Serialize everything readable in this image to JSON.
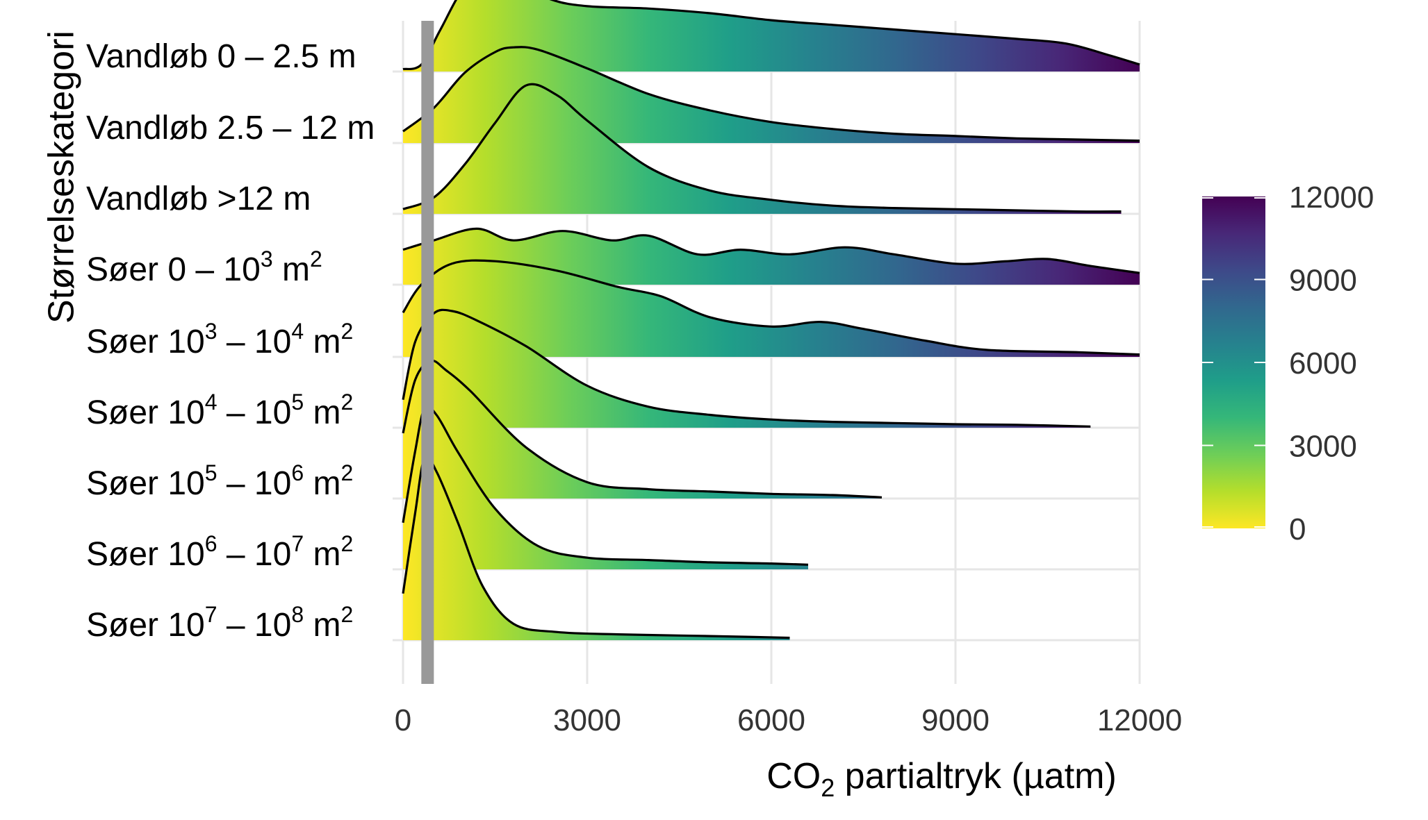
{
  "chart_data": {
    "type": "ridgeline",
    "ylabel": "Størrelseskategori",
    "xlabel": {
      "prefix": "CO",
      "subscript": "2",
      "suffix": " partialtryk (µatm)"
    },
    "xlim": [
      0,
      12000
    ],
    "x_ticks": [
      "0",
      "3000",
      "6000",
      "9000",
      "12000"
    ],
    "reference_line_x": 400,
    "colorbar": {
      "ticks": [
        "0",
        "3000",
        "6000",
        "9000",
        "12000"
      ],
      "range": [
        0,
        12000
      ],
      "colors": [
        "#fde725",
        "#b5de2b",
        "#6ece58",
        "#35b779",
        "#1f9e89",
        "#26828e",
        "#31688e",
        "#3e4989",
        "#482878",
        "#440154"
      ]
    },
    "categories": [
      {
        "label": {
          "prefix": "Vandløb 0 – 2.5 m"
        }
      },
      {
        "label": {
          "prefix": "Vandløb 2.5 – 12 m"
        }
      },
      {
        "label": {
          "prefix": "Vandløb >12 m"
        }
      },
      {
        "label": {
          "prefix": "Søer 0 – 10",
          "sup1": "3",
          "mid": " m",
          "sup2": "2"
        }
      },
      {
        "label": {
          "prefix": "Søer 10",
          "sup1": "3",
          "mid": " – 10",
          "sup2": "4",
          "end": " m",
          "sup3": "2"
        }
      },
      {
        "label": {
          "prefix": "Søer 10",
          "sup1": "4",
          "mid": " – 10",
          "sup2": "5",
          "end": " m",
          "sup3": "2"
        }
      },
      {
        "label": {
          "prefix": "Søer 10",
          "sup1": "5",
          "mid": " – 10",
          "sup2": "6",
          "end": " m",
          "sup3": "2"
        }
      },
      {
        "label": {
          "prefix": "Søer 10",
          "sup1": "6",
          "mid": " – 10",
          "sup2": "7",
          "end": " m",
          "sup3": "2"
        }
      },
      {
        "label": {
          "prefix": "Søer 10",
          "sup1": "7",
          "mid": " – 10",
          "sup2": "8",
          "end": " m",
          "sup3": "2"
        }
      }
    ],
    "series": [
      {
        "x_max": 12000,
        "density": [
          [
            0,
            0.02
          ],
          [
            300,
            0.06
          ],
          [
            600,
            0.35
          ],
          [
            1000,
            0.72
          ],
          [
            1400,
            0.82
          ],
          [
            1800,
            0.78
          ],
          [
            2400,
            0.62
          ],
          [
            3000,
            0.56
          ],
          [
            4000,
            0.54
          ],
          [
            5000,
            0.5
          ],
          [
            6000,
            0.44
          ],
          [
            7000,
            0.4
          ],
          [
            8000,
            0.36
          ],
          [
            9000,
            0.32
          ],
          [
            10000,
            0.28
          ],
          [
            10800,
            0.24
          ],
          [
            11500,
            0.14
          ],
          [
            12000,
            0.06
          ]
        ]
      },
      {
        "x_max": 12000,
        "density": [
          [
            0,
            0.1
          ],
          [
            500,
            0.3
          ],
          [
            1000,
            0.6
          ],
          [
            1500,
            0.78
          ],
          [
            1800,
            0.82
          ],
          [
            2200,
            0.8
          ],
          [
            3000,
            0.64
          ],
          [
            4000,
            0.42
          ],
          [
            5000,
            0.28
          ],
          [
            6000,
            0.18
          ],
          [
            7000,
            0.12
          ],
          [
            8000,
            0.08
          ],
          [
            9000,
            0.06
          ],
          [
            10000,
            0.04
          ],
          [
            11000,
            0.03
          ],
          [
            12000,
            0.02
          ]
        ]
      },
      {
        "x_max": 11700,
        "density": [
          [
            0,
            0.04
          ],
          [
            500,
            0.14
          ],
          [
            1000,
            0.42
          ],
          [
            1500,
            0.78
          ],
          [
            2000,
            1.1
          ],
          [
            2500,
            1.02
          ],
          [
            3000,
            0.8
          ],
          [
            4000,
            0.4
          ],
          [
            5000,
            0.2
          ],
          [
            6000,
            0.12
          ],
          [
            7000,
            0.07
          ],
          [
            8000,
            0.05
          ],
          [
            9000,
            0.04
          ],
          [
            10000,
            0.03
          ],
          [
            11000,
            0.02
          ],
          [
            11700,
            0.02
          ]
        ]
      },
      {
        "x_max": 12000,
        "density": [
          [
            0,
            0.3
          ],
          [
            500,
            0.38
          ],
          [
            1200,
            0.48
          ],
          [
            1800,
            0.38
          ],
          [
            2600,
            0.46
          ],
          [
            3400,
            0.38
          ],
          [
            4000,
            0.42
          ],
          [
            4800,
            0.26
          ],
          [
            5500,
            0.3
          ],
          [
            6300,
            0.26
          ],
          [
            7200,
            0.32
          ],
          [
            8000,
            0.26
          ],
          [
            9000,
            0.18
          ],
          [
            9800,
            0.2
          ],
          [
            10500,
            0.22
          ],
          [
            11200,
            0.16
          ],
          [
            12000,
            0.1
          ]
        ]
      },
      {
        "x_max": 12000,
        "density": [
          [
            0,
            0.38
          ],
          [
            300,
            0.62
          ],
          [
            800,
            0.8
          ],
          [
            1500,
            0.82
          ],
          [
            2500,
            0.74
          ],
          [
            3500,
            0.6
          ],
          [
            4200,
            0.52
          ],
          [
            5000,
            0.34
          ],
          [
            6000,
            0.26
          ],
          [
            6800,
            0.3
          ],
          [
            7500,
            0.24
          ],
          [
            8500,
            0.14
          ],
          [
            9500,
            0.06
          ],
          [
            11000,
            0.04
          ],
          [
            12000,
            0.02
          ]
        ]
      },
      {
        "x_max": 11200,
        "density": [
          [
            0,
            0.24
          ],
          [
            200,
            0.74
          ],
          [
            500,
            0.98
          ],
          [
            800,
            1.0
          ],
          [
            1200,
            0.92
          ],
          [
            2000,
            0.7
          ],
          [
            3000,
            0.36
          ],
          [
            4000,
            0.18
          ],
          [
            5000,
            0.11
          ],
          [
            6000,
            0.07
          ],
          [
            7000,
            0.05
          ],
          [
            8000,
            0.04
          ],
          [
            9000,
            0.03
          ],
          [
            10000,
            0.025
          ],
          [
            11200,
            0.01
          ]
        ]
      },
      {
        "x_max": 7800,
        "density": [
          [
            0,
            0.56
          ],
          [
            200,
            1.02
          ],
          [
            450,
            1.18
          ],
          [
            700,
            1.1
          ],
          [
            1100,
            0.92
          ],
          [
            2000,
            0.44
          ],
          [
            3000,
            0.14
          ],
          [
            4000,
            0.08
          ],
          [
            5000,
            0.06
          ],
          [
            6000,
            0.04
          ],
          [
            7000,
            0.03
          ],
          [
            7800,
            0.01
          ]
        ]
      },
      {
        "x_max": 6600,
        "density": [
          [
            0,
            0.4
          ],
          [
            200,
            1.02
          ],
          [
            350,
            1.38
          ],
          [
            550,
            1.32
          ],
          [
            900,
            1.0
          ],
          [
            1500,
            0.52
          ],
          [
            2200,
            0.2
          ],
          [
            3000,
            0.1
          ],
          [
            4000,
            0.08
          ],
          [
            5000,
            0.06
          ],
          [
            6000,
            0.05
          ],
          [
            6600,
            0.04
          ]
        ]
      },
      {
        "x_max": 6300,
        "density": [
          [
            0,
            0.4
          ],
          [
            200,
            1.1
          ],
          [
            350,
            1.56
          ],
          [
            550,
            1.44
          ],
          [
            900,
            1.0
          ],
          [
            1300,
            0.46
          ],
          [
            1800,
            0.14
          ],
          [
            2500,
            0.07
          ],
          [
            3500,
            0.05
          ],
          [
            4500,
            0.04
          ],
          [
            5500,
            0.03
          ],
          [
            6300,
            0.02
          ]
        ]
      }
    ]
  }
}
